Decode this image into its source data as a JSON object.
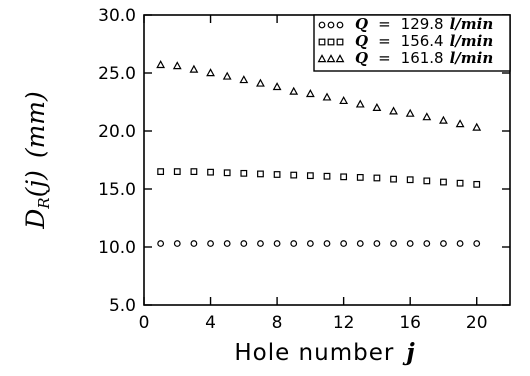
{
  "chart_data": {
    "type": "scatter",
    "xlabel_text": "Hole number",
    "xlabel_var": "j",
    "ylabel_var": "D",
    "ylabel_sub": "R",
    "ylabel_arg": "(j)",
    "ylabel_unit": "(mm)",
    "xlim": [
      0,
      22
    ],
    "ylim": [
      5.0,
      30.0
    ],
    "xticks": [
      0,
      4,
      8,
      12,
      16,
      20
    ],
    "xtick_labels": [
      "0",
      "4",
      "8",
      "12",
      "16",
      "20"
    ],
    "yticks": [
      5.0,
      10.0,
      15.0,
      20.0,
      25.0,
      30.0
    ],
    "ytick_labels": [
      "5.0",
      "10.0",
      "15.0",
      "20.0",
      "25.0",
      "30.0"
    ],
    "grid": false,
    "legend_position": "top-right",
    "x": [
      1,
      2,
      3,
      4,
      5,
      6,
      7,
      8,
      9,
      10,
      11,
      12,
      13,
      14,
      15,
      16,
      17,
      18,
      19,
      20
    ],
    "series": [
      {
        "marker": "circle",
        "legend_var": "Q",
        "legend_eq": "=",
        "legend_value": "129.8",
        "legend_unit": "l/min",
        "values": [
          10.3,
          10.3,
          10.3,
          10.3,
          10.3,
          10.3,
          10.3,
          10.3,
          10.3,
          10.3,
          10.3,
          10.3,
          10.3,
          10.3,
          10.3,
          10.3,
          10.3,
          10.3,
          10.3,
          10.3
        ]
      },
      {
        "marker": "square",
        "legend_var": "Q",
        "legend_eq": "=",
        "legend_value": "156.4",
        "legend_unit": "l/min",
        "values": [
          16.5,
          16.5,
          16.5,
          16.45,
          16.4,
          16.35,
          16.3,
          16.25,
          16.2,
          16.15,
          16.1,
          16.05,
          16.0,
          15.95,
          15.85,
          15.8,
          15.7,
          15.6,
          15.5,
          15.4
        ]
      },
      {
        "marker": "triangle",
        "legend_var": "Q",
        "legend_eq": "=",
        "legend_value": "161.8",
        "legend_unit": "l/min",
        "values": [
          25.7,
          25.6,
          25.3,
          25.0,
          24.7,
          24.4,
          24.1,
          23.8,
          23.4,
          23.2,
          22.9,
          22.6,
          22.3,
          22.0,
          21.7,
          21.5,
          21.2,
          20.9,
          20.6,
          20.3
        ]
      }
    ]
  }
}
